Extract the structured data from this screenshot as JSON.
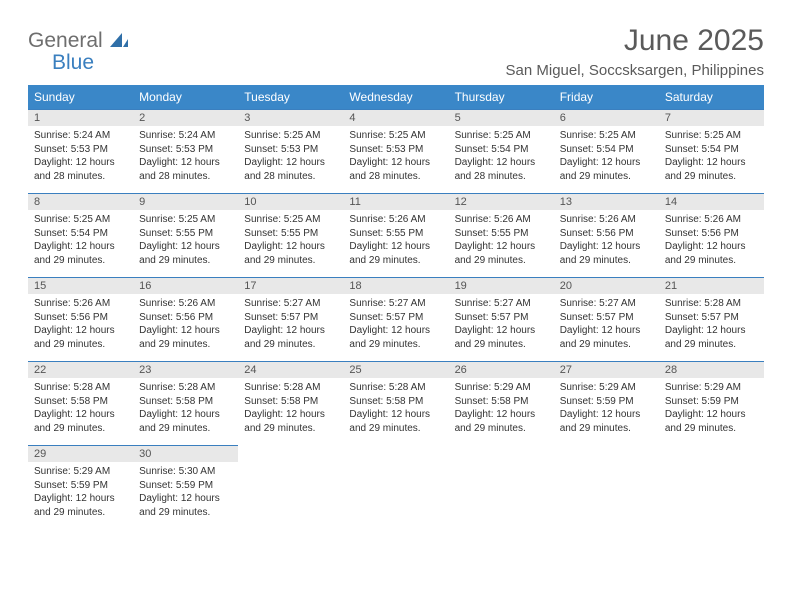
{
  "logo": {
    "general": "General",
    "blue": "Blue"
  },
  "title": "June 2025",
  "location": "San Miguel, Soccsksargen, Philippines",
  "colors": {
    "header_bg": "#3a87c8",
    "header_text": "#ffffff",
    "rule": "#3a7fbf",
    "daynum_bg": "#e8e8e8",
    "text": "#333333",
    "logo_general": "#6e6e6e",
    "logo_blue": "#3a7fbf"
  },
  "days_of_week": [
    "Sunday",
    "Monday",
    "Tuesday",
    "Wednesday",
    "Thursday",
    "Friday",
    "Saturday"
  ],
  "weeks": [
    [
      {
        "n": "1",
        "sr": "5:24 AM",
        "ss": "5:53 PM",
        "dl": "12 hours and 28 minutes."
      },
      {
        "n": "2",
        "sr": "5:24 AM",
        "ss": "5:53 PM",
        "dl": "12 hours and 28 minutes."
      },
      {
        "n": "3",
        "sr": "5:25 AM",
        "ss": "5:53 PM",
        "dl": "12 hours and 28 minutes."
      },
      {
        "n": "4",
        "sr": "5:25 AM",
        "ss": "5:53 PM",
        "dl": "12 hours and 28 minutes."
      },
      {
        "n": "5",
        "sr": "5:25 AM",
        "ss": "5:54 PM",
        "dl": "12 hours and 28 minutes."
      },
      {
        "n": "6",
        "sr": "5:25 AM",
        "ss": "5:54 PM",
        "dl": "12 hours and 29 minutes."
      },
      {
        "n": "7",
        "sr": "5:25 AM",
        "ss": "5:54 PM",
        "dl": "12 hours and 29 minutes."
      }
    ],
    [
      {
        "n": "8",
        "sr": "5:25 AM",
        "ss": "5:54 PM",
        "dl": "12 hours and 29 minutes."
      },
      {
        "n": "9",
        "sr": "5:25 AM",
        "ss": "5:55 PM",
        "dl": "12 hours and 29 minutes."
      },
      {
        "n": "10",
        "sr": "5:25 AM",
        "ss": "5:55 PM",
        "dl": "12 hours and 29 minutes."
      },
      {
        "n": "11",
        "sr": "5:26 AM",
        "ss": "5:55 PM",
        "dl": "12 hours and 29 minutes."
      },
      {
        "n": "12",
        "sr": "5:26 AM",
        "ss": "5:55 PM",
        "dl": "12 hours and 29 minutes."
      },
      {
        "n": "13",
        "sr": "5:26 AM",
        "ss": "5:56 PM",
        "dl": "12 hours and 29 minutes."
      },
      {
        "n": "14",
        "sr": "5:26 AM",
        "ss": "5:56 PM",
        "dl": "12 hours and 29 minutes."
      }
    ],
    [
      {
        "n": "15",
        "sr": "5:26 AM",
        "ss": "5:56 PM",
        "dl": "12 hours and 29 minutes."
      },
      {
        "n": "16",
        "sr": "5:26 AM",
        "ss": "5:56 PM",
        "dl": "12 hours and 29 minutes."
      },
      {
        "n": "17",
        "sr": "5:27 AM",
        "ss": "5:57 PM",
        "dl": "12 hours and 29 minutes."
      },
      {
        "n": "18",
        "sr": "5:27 AM",
        "ss": "5:57 PM",
        "dl": "12 hours and 29 minutes."
      },
      {
        "n": "19",
        "sr": "5:27 AM",
        "ss": "5:57 PM",
        "dl": "12 hours and 29 minutes."
      },
      {
        "n": "20",
        "sr": "5:27 AM",
        "ss": "5:57 PM",
        "dl": "12 hours and 29 minutes."
      },
      {
        "n": "21",
        "sr": "5:28 AM",
        "ss": "5:57 PM",
        "dl": "12 hours and 29 minutes."
      }
    ],
    [
      {
        "n": "22",
        "sr": "5:28 AM",
        "ss": "5:58 PM",
        "dl": "12 hours and 29 minutes."
      },
      {
        "n": "23",
        "sr": "5:28 AM",
        "ss": "5:58 PM",
        "dl": "12 hours and 29 minutes."
      },
      {
        "n": "24",
        "sr": "5:28 AM",
        "ss": "5:58 PM",
        "dl": "12 hours and 29 minutes."
      },
      {
        "n": "25",
        "sr": "5:28 AM",
        "ss": "5:58 PM",
        "dl": "12 hours and 29 minutes."
      },
      {
        "n": "26",
        "sr": "5:29 AM",
        "ss": "5:58 PM",
        "dl": "12 hours and 29 minutes."
      },
      {
        "n": "27",
        "sr": "5:29 AM",
        "ss": "5:59 PM",
        "dl": "12 hours and 29 minutes."
      },
      {
        "n": "28",
        "sr": "5:29 AM",
        "ss": "5:59 PM",
        "dl": "12 hours and 29 minutes."
      }
    ],
    [
      {
        "n": "29",
        "sr": "5:29 AM",
        "ss": "5:59 PM",
        "dl": "12 hours and 29 minutes."
      },
      {
        "n": "30",
        "sr": "5:30 AM",
        "ss": "5:59 PM",
        "dl": "12 hours and 29 minutes."
      },
      null,
      null,
      null,
      null,
      null
    ]
  ],
  "labels": {
    "sunrise": "Sunrise:",
    "sunset": "Sunset:",
    "daylight": "Daylight:"
  }
}
